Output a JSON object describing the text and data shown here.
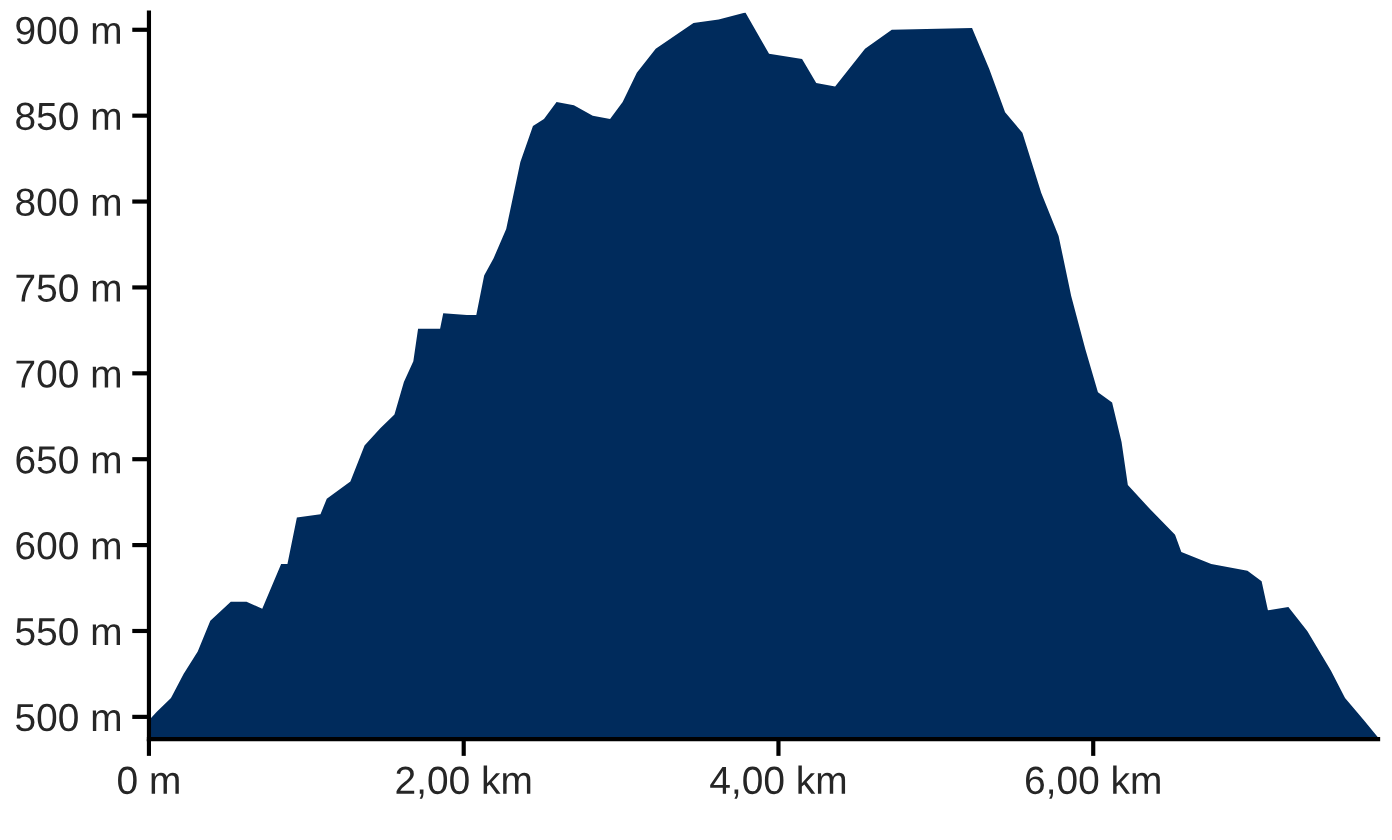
{
  "chart_data": {
    "type": "area",
    "x": [
      0,
      0.05,
      0.14,
      0.22,
      0.31,
      0.39,
      0.52,
      0.62,
      0.72,
      0.84,
      0.88,
      0.94,
      1.09,
      1.13,
      1.28,
      1.37,
      1.47,
      1.56,
      1.62,
      1.68,
      1.71,
      1.85,
      1.87,
      2.02,
      2.08,
      2.13,
      2.19,
      2.27,
      2.36,
      2.44,
      2.51,
      2.59,
      2.7,
      2.82,
      2.93,
      3.01,
      3.1,
      3.22,
      3.46,
      3.62,
      3.79,
      3.94,
      4.15,
      4.24,
      4.36,
      4.55,
      4.72,
      5.23,
      5.34,
      5.44,
      5.55,
      5.67,
      5.78,
      5.86,
      5.95,
      6.03,
      6.12,
      6.18,
      6.22,
      6.35,
      6.52,
      6.56,
      6.75,
      6.98,
      7.07,
      7.11,
      7.24,
      7.36,
      7.51,
      7.6,
      7.72,
      7.81
    ],
    "series": [
      {
        "color": "#002b5c",
        "values": [
          498,
          503,
          511,
          525,
          538,
          556,
          567,
          567,
          563,
          589,
          589,
          616,
          618,
          627,
          637,
          658,
          668,
          676,
          695,
          707,
          726,
          726,
          735,
          734,
          734,
          757,
          767,
          784,
          823,
          844,
          848,
          858,
          856,
          850,
          848,
          858,
          875,
          889,
          904,
          906,
          910,
          886,
          883,
          869,
          867,
          889,
          900,
          901,
          877,
          852,
          840,
          805,
          780,
          745,
          714,
          689,
          683,
          660,
          635,
          622,
          606,
          596,
          589,
          585,
          579,
          562,
          564,
          550,
          527,
          511,
          498,
          488
        ]
      }
    ],
    "xlim": [
      0,
      7.81
    ],
    "xticks": [
      {
        "value": 0,
        "label": "0 m"
      },
      {
        "value": 2,
        "label": "2,00 km"
      },
      {
        "value": 4,
        "label": "4,00 km"
      },
      {
        "value": 6,
        "label": "6,00 km"
      }
    ],
    "ylim": [
      487,
      910
    ],
    "yticks": [
      {
        "value": 500,
        "label": "500 m"
      },
      {
        "value": 550,
        "label": "550 m"
      },
      {
        "value": 600,
        "label": "600 m"
      },
      {
        "value": 650,
        "label": "650 m"
      },
      {
        "value": 700,
        "label": "700 m"
      },
      {
        "value": 750,
        "label": "750 m"
      },
      {
        "value": 800,
        "label": "800 m"
      },
      {
        "value": 850,
        "label": "850 m"
      },
      {
        "value": 900,
        "label": "900 m"
      }
    ],
    "grid": false
  }
}
